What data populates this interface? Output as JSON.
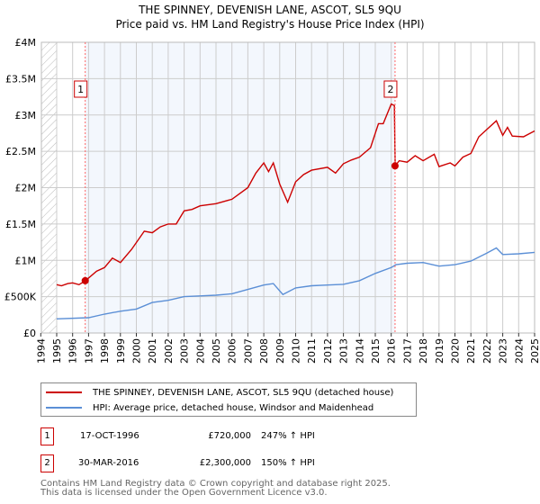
{
  "header": {
    "title": "THE SPINNEY, DEVENISH LANE, ASCOT, SL5 9QU",
    "subtitle": "Price paid vs. HM Land Registry's House Price Index (HPI)"
  },
  "chart_data": {
    "type": "line",
    "title": "THE SPINNEY, DEVENISH LANE, ASCOT, SL5 9QU",
    "subtitle": "Price paid vs. HM Land Registry's House Price Index (HPI)",
    "xlim": [
      1994,
      2025
    ],
    "ylim": [
      0,
      4000000
    ],
    "x_ticks": [
      "1994",
      "1995",
      "1996",
      "1997",
      "1998",
      "1999",
      "2000",
      "2001",
      "2002",
      "2003",
      "2004",
      "2005",
      "2006",
      "2007",
      "2008",
      "2009",
      "2010",
      "2011",
      "2012",
      "2013",
      "2014",
      "2015",
      "2016",
      "2017",
      "2018",
      "2019",
      "2020",
      "2021",
      "2022",
      "2023",
      "2024",
      "2025"
    ],
    "y_ticks": [
      {
        "v": 0,
        "l": "£0"
      },
      {
        "v": 500000,
        "l": "£500K"
      },
      {
        "v": 1000000,
        "l": "£1M"
      },
      {
        "v": 1500000,
        "l": "£1.5M"
      },
      {
        "v": 2000000,
        "l": "£2M"
      },
      {
        "v": 2500000,
        "l": "£2.5M"
      },
      {
        "v": 3000000,
        "l": "£3M"
      },
      {
        "v": 3500000,
        "l": "£3.5M"
      },
      {
        "v": 4000000,
        "l": "£4M"
      }
    ],
    "grid": true,
    "series": [
      {
        "name": "THE SPINNEY, DEVENISH LANE, ASCOT, SL5 9QU (detached house)",
        "color": "#cc0000",
        "x": [
          1995,
          1995.3,
          1995.7,
          1996,
          1996.4,
          1996.8,
          1997.5,
          1998,
          1998.5,
          1999,
          1999.7,
          2000.5,
          2001,
          2001.5,
          2002,
          2002.5,
          2003,
          2003.5,
          2004,
          2005,
          2006,
          2007,
          2007.5,
          2008,
          2008.3,
          2008.6,
          2009,
          2009.5,
          2010,
          2010.5,
          2011,
          2012,
          2012.5,
          2013,
          2013.5,
          2014,
          2014.7,
          2015.2,
          2015.5,
          2016,
          2016.2,
          2016.25,
          2016.5,
          2017,
          2017.5,
          2018,
          2018.7,
          2019,
          2019.7,
          2020,
          2020.5,
          2021,
          2021.5,
          2022,
          2022.6,
          2023,
          2023.3,
          2023.6,
          2024.3,
          2025
        ],
        "y": [
          665000,
          650000,
          680000,
          690000,
          665000,
          720000,
          850000,
          900000,
          1030000,
          970000,
          1150000,
          1400000,
          1380000,
          1460000,
          1500000,
          1500000,
          1680000,
          1700000,
          1750000,
          1780000,
          1840000,
          2000000,
          2200000,
          2340000,
          2220000,
          2340000,
          2050000,
          1800000,
          2080000,
          2180000,
          2240000,
          2280000,
          2200000,
          2330000,
          2380000,
          2420000,
          2550000,
          2880000,
          2880000,
          3150000,
          3130000,
          2300000,
          2370000,
          2350000,
          2440000,
          2370000,
          2460000,
          2290000,
          2340000,
          2300000,
          2420000,
          2470000,
          2700000,
          2800000,
          2920000,
          2720000,
          2830000,
          2710000,
          2700000,
          2780000
        ]
      },
      {
        "name": "HPI: Average price, detached house, Windsor and Maidenhead",
        "color": "#5b8fd6",
        "x": [
          1995,
          1997,
          1998,
          1999,
          2000,
          2001,
          2002,
          2003,
          2004,
          2005,
          2006,
          2007,
          2008,
          2008.6,
          2009.2,
          2010,
          2011,
          2012,
          2013,
          2014,
          2015,
          2016,
          2016.3,
          2017,
          2018,
          2019,
          2020,
          2021,
          2022,
          2022.6,
          2023,
          2024,
          2025
        ],
        "y": [
          195000,
          210000,
          260000,
          300000,
          330000,
          420000,
          450000,
          500000,
          510000,
          520000,
          540000,
          600000,
          660000,
          680000,
          530000,
          620000,
          650000,
          660000,
          670000,
          720000,
          820000,
          900000,
          940000,
          960000,
          970000,
          920000,
          940000,
          990000,
          1100000,
          1170000,
          1080000,
          1090000,
          1110000
        ]
      }
    ],
    "sales": [
      {
        "label": "1",
        "x": 1996.79,
        "y": 720000
      },
      {
        "label": "2",
        "x": 2016.24,
        "y": 2300000
      }
    ],
    "legend_placement": "bottom"
  },
  "legend": {
    "items": [
      "THE SPINNEY, DEVENISH LANE, ASCOT, SL5 9QU (detached house)",
      "HPI: Average price, detached house, Windsor and Maidenhead"
    ]
  },
  "table": [
    {
      "n": "1",
      "date": "17-OCT-1996",
      "price": "£720,000",
      "hpi": "247% ↑ HPI"
    },
    {
      "n": "2",
      "date": "30-MAR-2016",
      "price": "£2,300,000",
      "hpi": "150% ↑ HPI"
    }
  ],
  "footer": [
    "Contains HM Land Registry data © Crown copyright and database right 2025.",
    "This data is licensed under the Open Government Licence v3.0."
  ]
}
